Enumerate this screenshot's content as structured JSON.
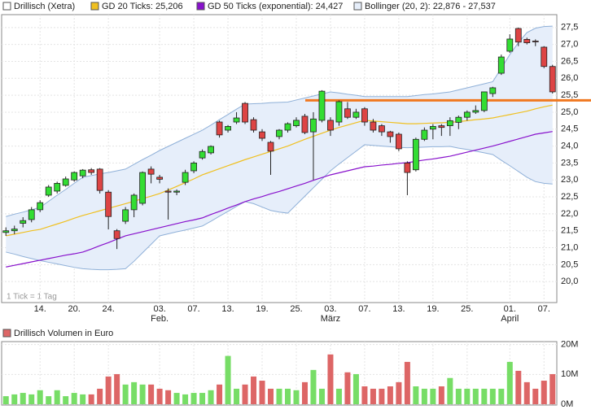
{
  "chart_data": [
    {
      "type": "candlestick",
      "series_name": "Drillisch (Xetra)",
      "up_color": "#33dd33",
      "down_color": "#dd4444",
      "annotation": "1 Tick = 1 Tag",
      "categories": [
        null,
        null,
        null,
        null,
        "14.",
        null,
        null,
        null,
        "20.",
        null,
        null,
        null,
        "24.",
        null,
        null,
        null,
        null,
        null,
        "03.",
        null,
        null,
        null,
        "07.",
        null,
        null,
        null,
        "13.",
        null,
        null,
        null,
        "19.",
        null,
        null,
        null,
        "25.",
        null,
        null,
        null,
        "03.",
        null,
        null,
        null,
        "07.",
        null,
        null,
        null,
        "13.",
        null,
        null,
        null,
        "19.",
        null,
        null,
        null,
        "25.",
        null,
        null,
        null,
        null,
        "01.",
        null,
        null,
        null,
        "07.",
        null
      ],
      "month_labels": [
        null,
        null,
        null,
        null,
        null,
        null,
        null,
        null,
        null,
        null,
        null,
        null,
        null,
        null,
        null,
        null,
        null,
        null,
        "Feb.",
        null,
        null,
        null,
        null,
        null,
        null,
        null,
        null,
        null,
        null,
        null,
        null,
        null,
        null,
        null,
        null,
        null,
        null,
        null,
        "März",
        null,
        null,
        null,
        null,
        null,
        null,
        null,
        null,
        null,
        null,
        null,
        null,
        null,
        null,
        null,
        null,
        null,
        null,
        null,
        null,
        "April",
        null,
        null,
        null,
        null,
        null
      ],
      "open": [
        21.45,
        21.5,
        21.72,
        21.83,
        22.12,
        22.55,
        22.67,
        22.84,
        23.0,
        23.12,
        23.3,
        23.32,
        22.64,
        21.5,
        21.78,
        22.12,
        22.31,
        23.32,
        23.08,
        22.67,
        22.64,
        22.93,
        23.27,
        23.65,
        23.8,
        24.71,
        24.47,
        24.71,
        25.26,
        24.78,
        24.42,
        24.11,
        24.28,
        24.47,
        24.6,
        24.88,
        24.42,
        24.76,
        24.76,
        24.71,
        25.1,
        24.85,
        25.1,
        24.71,
        24.6,
        24.42,
        24.35,
        23.5,
        23.3,
        24.2,
        24.5,
        24.6,
        24.6,
        24.7,
        24.85,
        25.0,
        25.05,
        25.55,
        26.15,
        26.8,
        27.47,
        27.15,
        27.1,
        26.92,
        26.35
      ],
      "high": [
        21.6,
        21.65,
        21.9,
        22.2,
        22.4,
        22.85,
        22.95,
        23.1,
        23.25,
        23.32,
        23.35,
        23.35,
        22.7,
        21.55,
        22.2,
        22.6,
        23.25,
        23.4,
        23.15,
        22.75,
        22.72,
        23.3,
        23.55,
        23.9,
        24.02,
        24.75,
        24.62,
        25.0,
        25.3,
        24.85,
        24.5,
        24.15,
        24.5,
        24.7,
        24.85,
        24.95,
        25.0,
        25.65,
        24.85,
        25.35,
        25.3,
        25.1,
        25.15,
        24.8,
        24.65,
        24.45,
        24.4,
        23.55,
        24.25,
        24.55,
        24.65,
        24.65,
        24.85,
        24.9,
        25.05,
        25.2,
        25.6,
        25.75,
        26.7,
        27.3,
        27.5,
        27.2,
        27.15,
        26.95,
        26.4
      ],
      "low": [
        21.35,
        21.4,
        21.6,
        21.75,
        22.05,
        22.5,
        22.6,
        22.8,
        22.95,
        23.05,
        23.15,
        22.6,
        21.54,
        20.96,
        21.7,
        21.9,
        22.25,
        22.9,
        22.9,
        21.83,
        22.55,
        22.85,
        23.2,
        23.6,
        23.75,
        24.25,
        24.4,
        24.65,
        24.65,
        24.4,
        24.15,
        23.15,
        24.2,
        24.4,
        24.55,
        24.35,
        23.0,
        24.7,
        24.3,
        24.6,
        24.8,
        24.8,
        24.6,
        24.4,
        24.3,
        24.1,
        23.85,
        22.55,
        23.25,
        24.15,
        24.2,
        24.3,
        24.3,
        24.5,
        24.75,
        24.95,
        25.0,
        25.45,
        26.1,
        26.75,
        26.95,
        27.0,
        26.95,
        26.3,
        25.55
      ],
      "close": [
        21.5,
        21.55,
        21.8,
        22.12,
        22.33,
        22.79,
        22.9,
        23.03,
        23.22,
        23.29,
        23.22,
        22.69,
        21.92,
        21.27,
        22.12,
        22.55,
        23.22,
        23.17,
        23.02,
        22.64,
        22.67,
        23.22,
        23.5,
        23.84,
        23.99,
        24.33,
        24.58,
        24.83,
        24.71,
        24.47,
        24.23,
        23.85,
        24.47,
        24.66,
        24.76,
        24.4,
        24.8,
        25.62,
        24.47,
        25.31,
        24.85,
        25.0,
        24.71,
        24.47,
        24.42,
        24.28,
        23.92,
        23.22,
        24.2,
        24.47,
        24.58,
        24.55,
        24.75,
        24.85,
        25.0,
        25.05,
        25.6,
        25.72,
        26.63,
        27.16,
        27.07,
        27.05,
        27.08,
        26.35,
        25.6
      ],
      "lines": [
        {
          "name": "GD 20 Ticks: 25,206",
          "color": "#f0c020",
          "values": [
            21.35,
            21.4,
            21.45,
            21.5,
            21.54,
            21.62,
            21.7,
            21.78,
            21.87,
            21.95,
            22.02,
            22.09,
            22.16,
            22.23,
            22.3,
            22.37,
            22.45,
            22.52,
            22.6,
            22.7,
            22.81,
            22.92,
            23.03,
            23.15,
            23.24,
            23.33,
            23.42,
            23.51,
            23.6,
            23.68,
            23.76,
            23.84,
            23.92,
            24.0,
            24.1,
            24.2,
            24.29,
            24.38,
            24.47,
            24.55,
            24.62,
            24.69,
            24.76,
            24.74,
            24.72,
            24.7,
            24.68,
            24.66,
            24.66,
            24.67,
            24.68,
            24.69,
            24.7,
            24.72,
            24.75,
            24.78,
            24.8,
            24.83,
            24.88,
            24.93,
            24.98,
            25.03,
            25.1,
            25.16,
            25.21
          ]
        },
        {
          "name": "GD 50 Ticks (exponential): 24,427",
          "color": "#8811cc",
          "values": [
            20.43,
            20.48,
            20.53,
            20.58,
            20.63,
            20.68,
            20.73,
            20.78,
            20.82,
            20.87,
            20.96,
            21.06,
            21.15,
            21.25,
            21.35,
            21.41,
            21.47,
            21.53,
            21.59,
            21.65,
            21.71,
            21.77,
            21.82,
            21.88,
            21.98,
            22.07,
            22.17,
            22.26,
            22.36,
            22.44,
            22.51,
            22.59,
            22.66,
            22.74,
            22.82,
            22.9,
            22.99,
            23.07,
            23.15,
            23.21,
            23.27,
            23.33,
            23.39,
            23.41,
            23.44,
            23.46,
            23.49,
            23.51,
            23.55,
            23.59,
            23.62,
            23.66,
            23.7,
            23.76,
            23.82,
            23.88,
            23.94,
            24.0,
            24.07,
            24.14,
            24.21,
            24.28,
            24.35,
            24.39,
            24.43
          ]
        }
      ],
      "band": {
        "name": "Bollinger (20, 2): 22,876 - 27,537",
        "color": "#8fb0d8",
        "fill": "#e6eefa",
        "upper": [
          21.92,
          21.99,
          22.05,
          22.12,
          22.19,
          22.37,
          22.55,
          22.72,
          22.9,
          23.08,
          23.13,
          23.18,
          23.22,
          23.27,
          23.32,
          23.46,
          23.6,
          23.73,
          23.87,
          23.99,
          24.11,
          24.23,
          24.35,
          24.47,
          24.62,
          24.78,
          24.93,
          25.09,
          25.24,
          25.25,
          25.26,
          25.28,
          25.29,
          25.3,
          25.36,
          25.42,
          25.48,
          25.54,
          25.6,
          25.57,
          25.53,
          25.5,
          25.46,
          25.46,
          25.46,
          25.46,
          25.46,
          25.46,
          25.49,
          25.52,
          25.54,
          25.57,
          25.6,
          25.66,
          25.72,
          25.78,
          25.84,
          25.9,
          26.3,
          26.7,
          27.05,
          27.35,
          27.48,
          27.53,
          27.54
        ],
        "lower": [
          20.87,
          20.81,
          20.74,
          20.68,
          20.62,
          20.57,
          20.52,
          20.47,
          20.42,
          20.38,
          20.36,
          20.35,
          20.35,
          20.36,
          20.38,
          20.6,
          20.85,
          21.1,
          21.35,
          21.41,
          21.47,
          21.52,
          21.58,
          21.64,
          21.78,
          21.93,
          22.07,
          22.22,
          22.36,
          22.3,
          22.2,
          22.1,
          22.05,
          22.02,
          22.27,
          22.52,
          22.77,
          23.02,
          23.27,
          23.47,
          23.66,
          23.85,
          24.04,
          24.02,
          24.0,
          23.98,
          23.96,
          23.95,
          23.96,
          23.97,
          23.98,
          23.98,
          23.99,
          23.94,
          23.9,
          23.85,
          23.8,
          23.75,
          23.58,
          23.42,
          23.25,
          23.08,
          22.95,
          22.9,
          22.88
        ]
      },
      "hline": {
        "value": 25.35,
        "color": "#f07820"
      },
      "ylim": [
        19.38,
        27.88
      ],
      "yticks": [
        {
          "value": 20,
          "label": "20,0"
        },
        {
          "value": 20.5,
          "label": "20,5"
        },
        {
          "value": 21,
          "label": "21,0"
        },
        {
          "value": 21.5,
          "label": "21,5"
        },
        {
          "value": 22,
          "label": "22,0"
        },
        {
          "value": 22.5,
          "label": "22,5"
        },
        {
          "value": 23,
          "label": "23,0"
        },
        {
          "value": 23.5,
          "label": "23,5"
        },
        {
          "value": 24,
          "label": "24,0"
        },
        {
          "value": 24.5,
          "label": "24,5"
        },
        {
          "value": 25,
          "label": "25,0"
        },
        {
          "value": 25.5,
          "label": "25,5"
        },
        {
          "value": 26,
          "label": "26,0"
        },
        {
          "value": 26.5,
          "label": "26,5"
        },
        {
          "value": 27,
          "label": "27,0"
        },
        {
          "value": 27.5,
          "label": "27,5"
        }
      ],
      "grid": true
    },
    {
      "type": "bar",
      "title": "Drillisch Volumen in Euro",
      "values": [
        2700000,
        3300000,
        3800000,
        3300000,
        4700000,
        2700000,
        4700000,
        2700000,
        3800000,
        3300000,
        3300000,
        5200000,
        9300000,
        10100000,
        6600000,
        7400000,
        6600000,
        6600000,
        5200000,
        4700000,
        3800000,
        3300000,
        3800000,
        3800000,
        4700000,
        6600000,
        16200000,
        5200000,
        6600000,
        9300000,
        7900000,
        5200000,
        5200000,
        5200000,
        4700000,
        7400000,
        11500000,
        5200000,
        16700000,
        5200000,
        10700000,
        10100000,
        6000000,
        5200000,
        5200000,
        6000000,
        7400000,
        14200000,
        6000000,
        5200000,
        5200000,
        6000000,
        8800000,
        5200000,
        5200000,
        5200000,
        5200000,
        5200000,
        5200000,
        14200000,
        11200000,
        7400000,
        5200000,
        7900000,
        10100000
      ],
      "ylim": [
        0,
        21000000
      ],
      "yticks": [
        {
          "value": 0,
          "label": "0M"
        },
        {
          "value": 10000000,
          "label": "10M"
        },
        {
          "value": 20000000,
          "label": "20M"
        }
      ],
      "grid": true
    }
  ]
}
